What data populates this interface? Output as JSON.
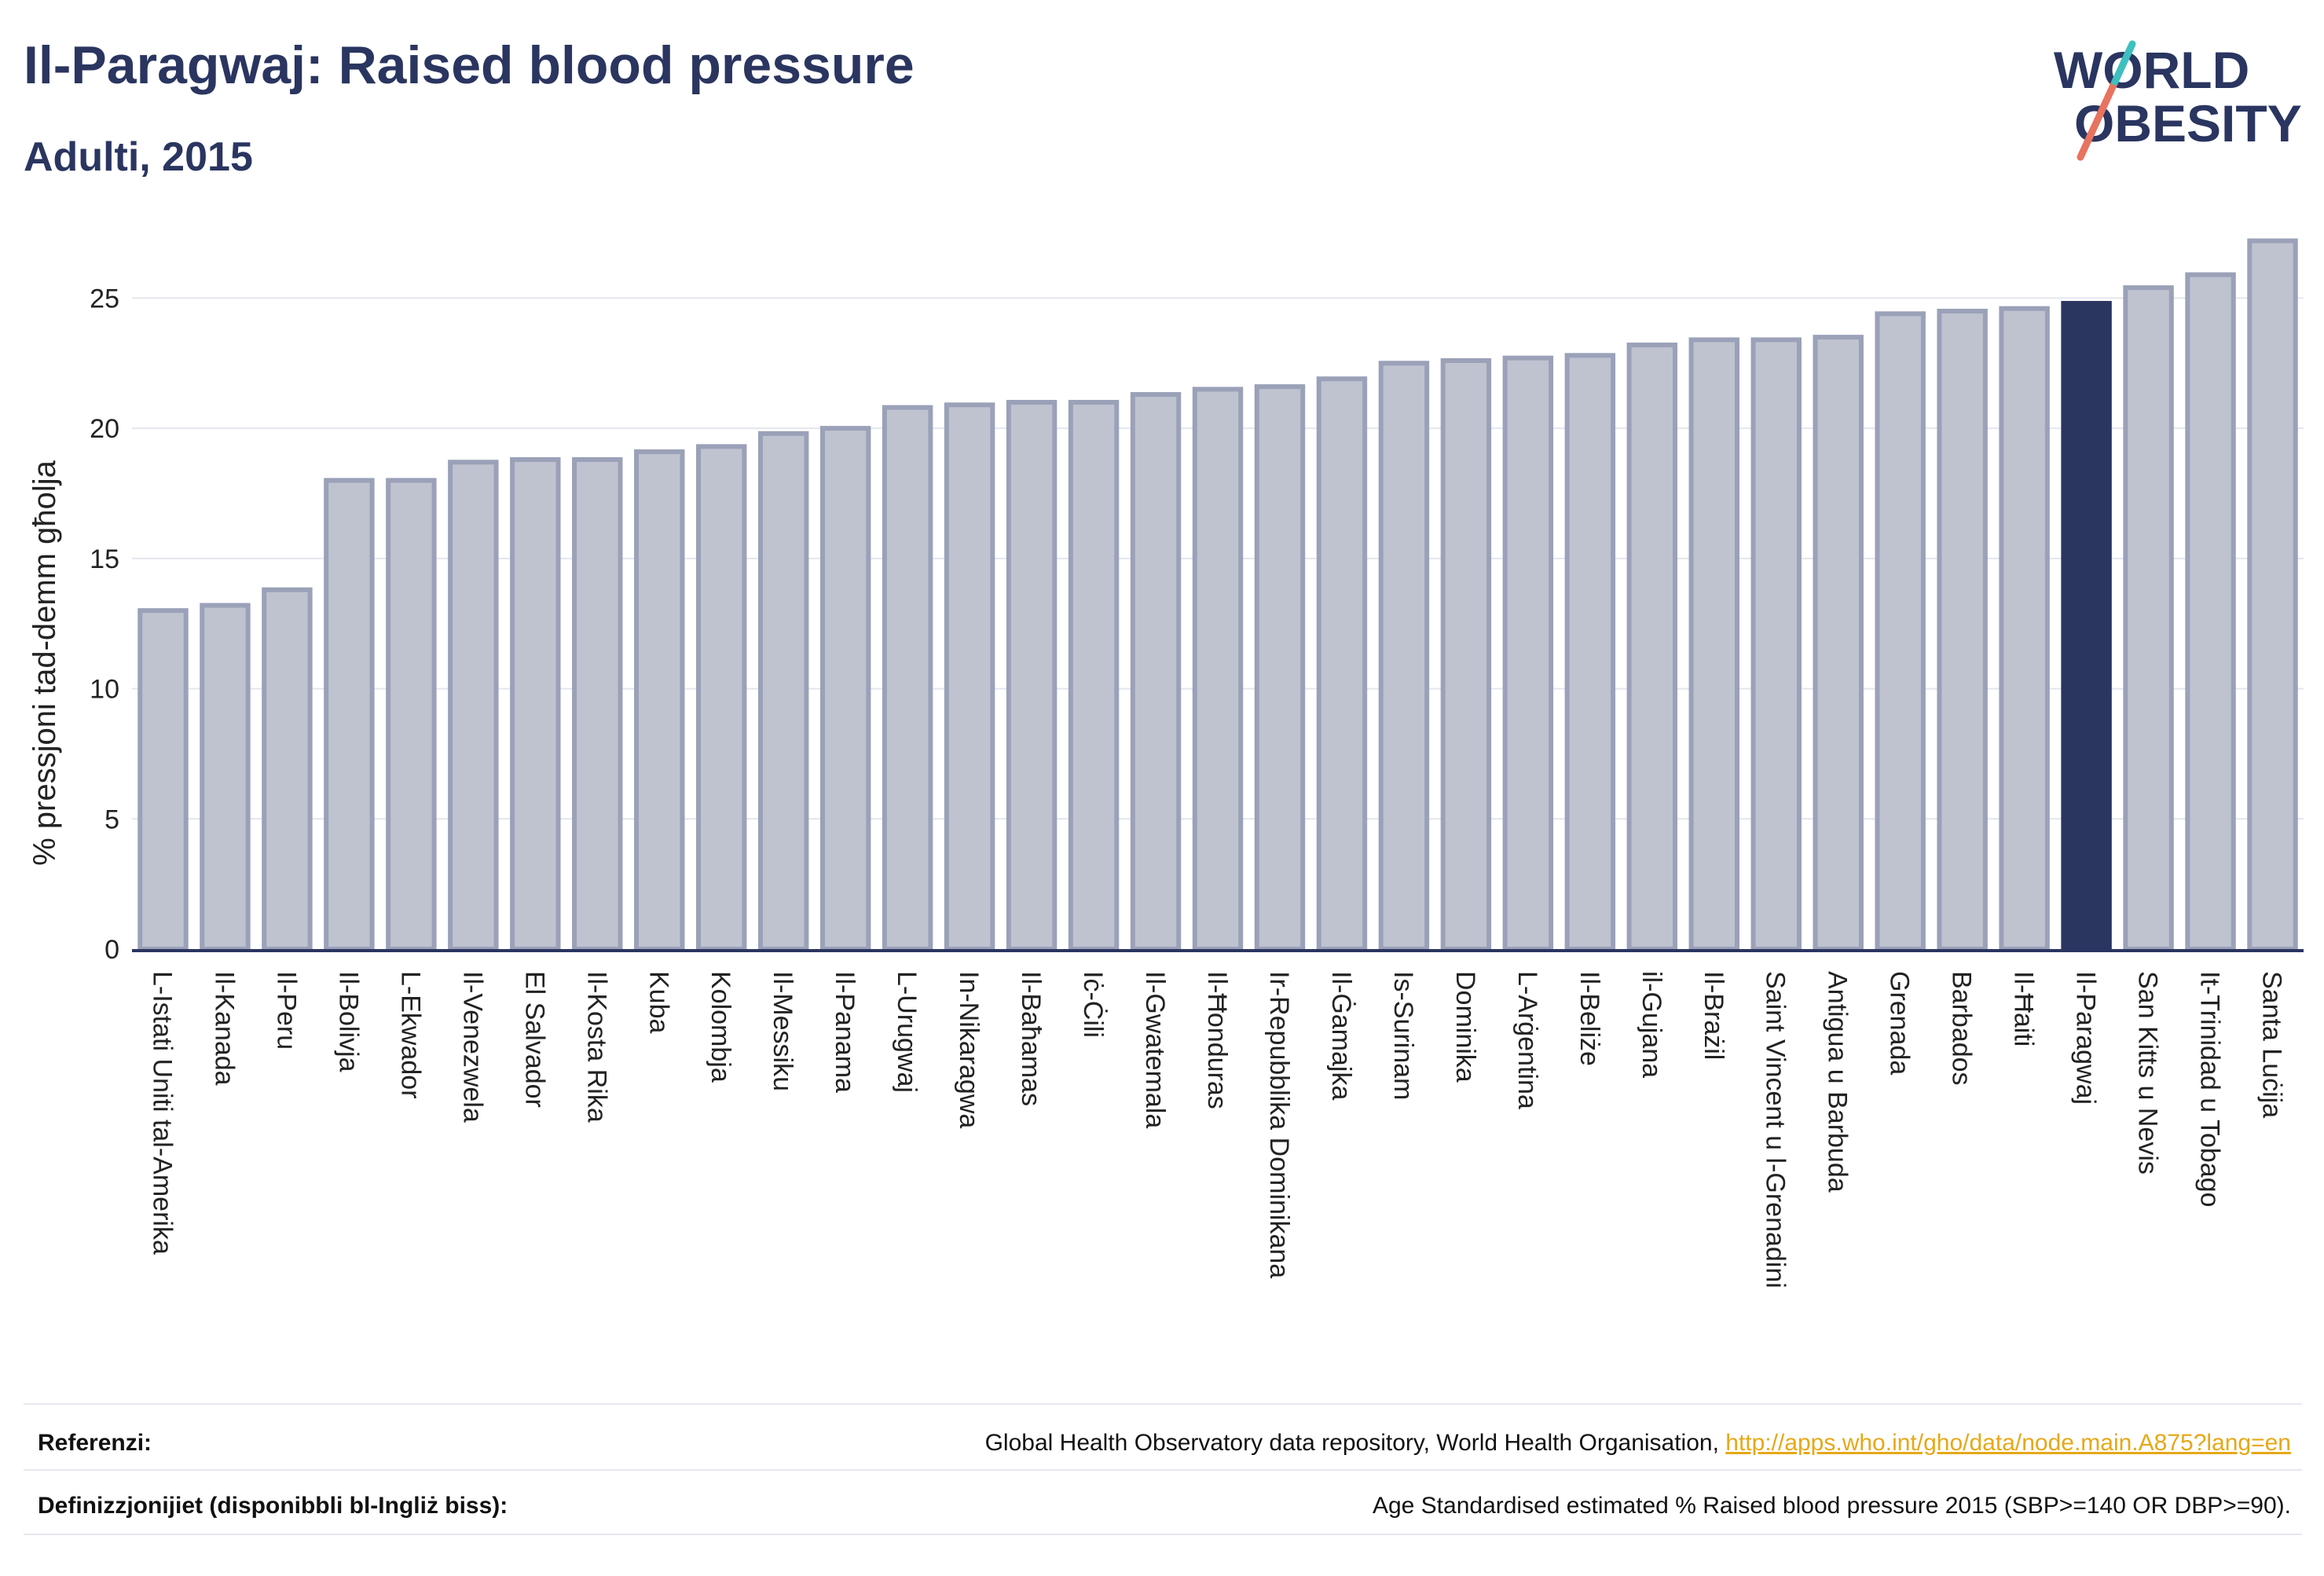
{
  "header": {
    "title": "Il-Paragwaj: Raised blood pressure",
    "subtitle": "Adulti, 2015"
  },
  "logo": {
    "line1": "WORLD",
    "line2": "OBESITY"
  },
  "colors": {
    "highlight": "#2a3560",
    "bar": "#bfc3d0",
    "bar_stroke": "#9aa1b8",
    "text": "#2a3560",
    "link": "#e6a817"
  },
  "chart_data": {
    "type": "bar",
    "ylabel": "% pressjoni tad-demm għolja",
    "ylim": [
      0,
      28
    ],
    "yticks": [
      0,
      5,
      10,
      15,
      20,
      25
    ],
    "grid": true,
    "highlight": "Il-Paragwaj",
    "categories": [
      "L-Istati Uniti tal-Amerika",
      "Il-Kanada",
      "Il-Peru",
      "Il-Bolivja",
      "L-Ekwador",
      "Il-Venezwela",
      "El Salvador",
      "Il-Kosta Rika",
      "Kuba",
      "Kolombja",
      "Il-Messiku",
      "Il-Panama",
      "L-Urugwaj",
      "In-Nikaragwa",
      "Il-Baħamas",
      "Iċ-Ċili",
      "Il-Gwatemala",
      "Il-Ħonduras",
      "Ir-Repubblika Dominikana",
      "Il-Ġamajka",
      "Is-Surinam",
      "Dominika",
      "L-Arġentina",
      "Il-Beliże",
      "il-Gujana",
      "Il-Brażil",
      "Saint Vincent u l-Grenadini",
      "Antigua u Barbuda",
      "Grenada",
      "Barbados",
      "Il-Ħaiti",
      "Il-Paragwaj",
      "San Kitts u Nevis",
      "It-Trinidad u Tobago",
      "Santa Luċija"
    ],
    "values": [
      13.0,
      13.2,
      13.8,
      18.0,
      18.0,
      18.7,
      18.8,
      18.8,
      19.1,
      19.3,
      19.8,
      20.0,
      20.8,
      20.9,
      21.0,
      21.0,
      21.3,
      21.5,
      21.6,
      21.9,
      22.5,
      22.6,
      22.7,
      22.8,
      23.2,
      23.4,
      23.4,
      23.5,
      24.4,
      24.5,
      24.6,
      24.8,
      25.4,
      25.9,
      27.2
    ]
  },
  "footer": {
    "references_label": "Referenzi:",
    "references_text": "Global Health Observatory data repository, World Health Organisation, ",
    "references_link": "http://apps.who.int/gho/data/node.main.A875?lang=en",
    "definitions_label": "Definizzjonijiet (disponibbli bl-Ingliż biss):",
    "definitions_text": "Age Standardised estimated % Raised blood pressure 2015 (SBP>=140 OR DBP>=90)."
  }
}
